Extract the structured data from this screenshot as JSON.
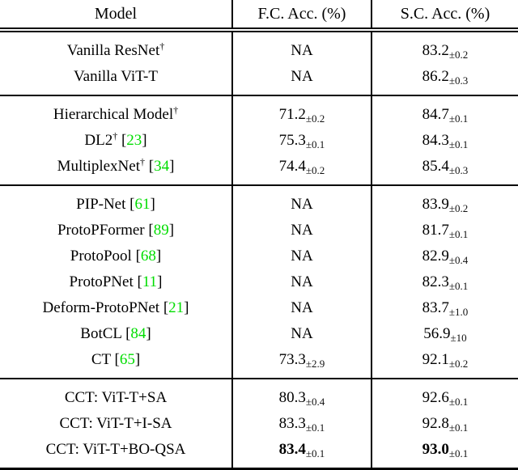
{
  "table": {
    "headers": [
      {
        "label": "Model"
      },
      {
        "label": "F.C. Acc. (%)"
      },
      {
        "label": "S.C. Acc. (%)"
      }
    ],
    "na_label": "NA",
    "symbols": {
      "dagger": "†",
      "bracket_open": "[",
      "bracket_close": "]",
      "plus_minus": "±"
    },
    "colors": {
      "citation_green": "#00dd00",
      "text": "#000000",
      "background": "#ffffff",
      "rule": "#000000"
    },
    "sections": [
      {
        "rows": [
          {
            "model": "Vanilla ResNet",
            "dagger": true,
            "cite": "",
            "fc": "NA",
            "fc_sub": "",
            "sc": "83.2",
            "sc_sub": "±0.2",
            "bold": false
          },
          {
            "model": "Vanilla ViT-T",
            "dagger": false,
            "cite": "",
            "fc": "NA",
            "fc_sub": "",
            "sc": "86.2",
            "sc_sub": "±0.3",
            "bold": false
          }
        ]
      },
      {
        "rows": [
          {
            "model": "Hierarchical Model",
            "dagger": true,
            "cite": "",
            "fc": "71.2",
            "fc_sub": "±0.2",
            "sc": "84.7",
            "sc_sub": "±0.1",
            "bold": false
          },
          {
            "model": "DL2",
            "dagger": true,
            "cite": "23",
            "fc": "75.3",
            "fc_sub": "±0.1",
            "sc": "84.3",
            "sc_sub": "±0.1",
            "bold": false
          },
          {
            "model": "MultiplexNet",
            "dagger": true,
            "cite": "34",
            "fc": "74.4",
            "fc_sub": "±0.2",
            "sc": "85.4",
            "sc_sub": "±0.3",
            "bold": false
          }
        ]
      },
      {
        "rows": [
          {
            "model": "PIP-Net",
            "dagger": false,
            "cite": "61",
            "fc": "NA",
            "fc_sub": "",
            "sc": "83.9",
            "sc_sub": "±0.2",
            "bold": false
          },
          {
            "model": "ProtoPFormer",
            "dagger": false,
            "cite": "89",
            "fc": "NA",
            "fc_sub": "",
            "sc": "81.7",
            "sc_sub": "±0.1",
            "bold": false
          },
          {
            "model": "ProtoPool",
            "dagger": false,
            "cite": "68",
            "fc": "NA",
            "fc_sub": "",
            "sc": "82.9",
            "sc_sub": "±0.4",
            "bold": false
          },
          {
            "model": "ProtoPNet",
            "dagger": false,
            "cite": "11",
            "fc": "NA",
            "fc_sub": "",
            "sc": "82.3",
            "sc_sub": "±0.1",
            "bold": false
          },
          {
            "model": "Deform-ProtoPNet",
            "dagger": false,
            "cite": "21",
            "fc": "NA",
            "fc_sub": "",
            "sc": "83.7",
            "sc_sub": "±1.0",
            "bold": false
          },
          {
            "model": "BotCL",
            "dagger": false,
            "cite": "84",
            "fc": "NA",
            "fc_sub": "",
            "sc": "56.9",
            "sc_sub": "±10",
            "bold": false
          },
          {
            "model": "CT",
            "dagger": false,
            "cite": "65",
            "fc": "73.3",
            "fc_sub": "±2.9",
            "sc": "92.1",
            "sc_sub": "±0.2",
            "bold": false
          }
        ]
      },
      {
        "rows": [
          {
            "model": "CCT: ViT-T+SA",
            "dagger": false,
            "cite": "",
            "fc": "80.3",
            "fc_sub": "±0.4",
            "sc": "92.6",
            "sc_sub": "±0.1",
            "bold": false
          },
          {
            "model": "CCT: ViT-T+I-SA",
            "dagger": false,
            "cite": "",
            "fc": "83.3",
            "fc_sub": "±0.1",
            "sc": "92.8",
            "sc_sub": "±0.1",
            "bold": false
          },
          {
            "model": "CCT: ViT-T+BO-QSA",
            "dagger": false,
            "cite": "",
            "fc": "83.4",
            "fc_sub": "±0.1",
            "sc": "93.0",
            "sc_sub": "±0.1",
            "bold": true
          }
        ]
      }
    ]
  }
}
